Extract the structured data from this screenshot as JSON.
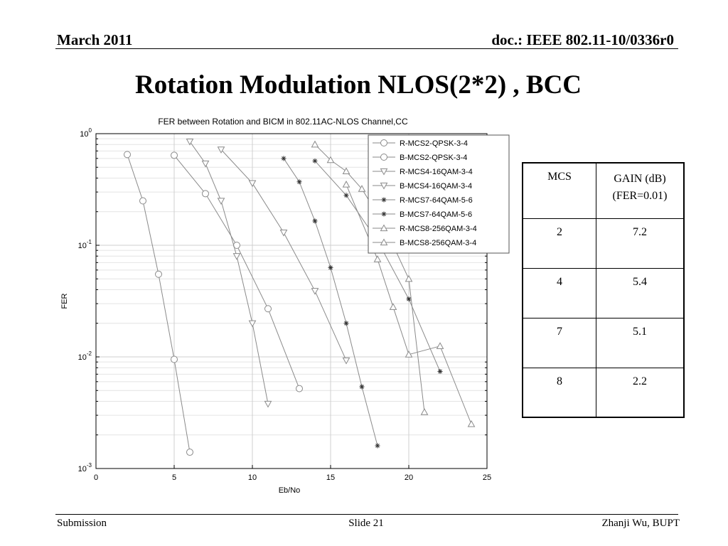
{
  "header": {
    "date": "March 2011",
    "doc": "doc.: IEEE 802.11-10/0336r0"
  },
  "slide_title": "Rotation Modulation NLOS(2*2) , BCC",
  "footer": {
    "left": "Submission",
    "center": "Slide 21",
    "right": "Zhanji Wu, BUPT"
  },
  "gain_table": {
    "headers": [
      "MCS",
      "GAIN (dB)",
      "(FER=0.01)"
    ],
    "rows": [
      {
        "mcs": "2",
        "gain": "7.2"
      },
      {
        "mcs": "4",
        "gain": "5.4"
      },
      {
        "mcs": "7",
        "gain": "5.1"
      },
      {
        "mcs": "8",
        "gain": "2.2"
      }
    ]
  },
  "chart_data": {
    "type": "line",
    "title": "FER between Rotation and BICM in 802.11AC-NLOS Channel,CC",
    "xlabel": "Eb/No",
    "ylabel": "FER",
    "xlim": [
      0,
      25
    ],
    "ylim": [
      0.001,
      1
    ],
    "y_scale": "log",
    "x_ticks": [
      0,
      5,
      10,
      15,
      20,
      25
    ],
    "y_ticks": [
      {
        "value": 1,
        "base": "10",
        "exp": "0"
      },
      {
        "value": 0.1,
        "base": "10",
        "exp": "-1"
      },
      {
        "value": 0.01,
        "base": "10",
        "exp": "-2"
      },
      {
        "value": 0.001,
        "base": "10",
        "exp": "-3"
      }
    ],
    "grid": true,
    "legend_position": "top-right",
    "series": [
      {
        "name": "R-MCS2-QPSK-3-4",
        "marker": "circle",
        "x": [
          2,
          3,
          4,
          5,
          6
        ],
        "y": [
          0.65,
          0.25,
          0.055,
          0.0095,
          0.0014
        ]
      },
      {
        "name": "B-MCS2-QPSK-3-4",
        "marker": "circle",
        "x": [
          5,
          7,
          9,
          11,
          13
        ],
        "y": [
          0.64,
          0.29,
          0.1,
          0.027,
          0.0052
        ]
      },
      {
        "name": "R-MCS4-16QAM-3-4",
        "marker": "triangle-down",
        "x": [
          6,
          7,
          8,
          9,
          10,
          11
        ],
        "y": [
          0.85,
          0.54,
          0.25,
          0.08,
          0.02,
          0.0038
        ]
      },
      {
        "name": "B-MCS4-16QAM-3-4",
        "marker": "triangle-down",
        "x": [
          8,
          10,
          12,
          14,
          16
        ],
        "y": [
          0.72,
          0.36,
          0.13,
          0.039,
          0.0093
        ]
      },
      {
        "name": "R-MCS7-64QAM-5-6",
        "marker": "star",
        "x": [
          12,
          13,
          14,
          15,
          16,
          17,
          18
        ],
        "y": [
          0.6,
          0.37,
          0.165,
          0.063,
          0.02,
          0.0054,
          0.0016
        ]
      },
      {
        "name": "B-MCS7-64QAM-5-6",
        "marker": "star",
        "x": [
          14,
          16,
          18,
          20,
          22
        ],
        "y": [
          0.57,
          0.28,
          0.11,
          0.033,
          0.0074
        ]
      },
      {
        "name": "R-MCS8-256QAM-3-4",
        "marker": "triangle-up",
        "x": [
          14,
          15,
          16,
          17,
          18,
          19,
          20,
          21
        ],
        "y": [
          0.8,
          0.58,
          0.46,
          0.32,
          0.19,
          0.1,
          0.05,
          0.0032
        ]
      },
      {
        "name": "B-MCS8-256QAM-3-4",
        "marker": "triangle-up",
        "x": [
          16,
          18,
          19,
          20,
          22,
          24
        ],
        "y": [
          0.35,
          0.075,
          0.028,
          0.0105,
          0.0125,
          0.0025
        ]
      }
    ]
  }
}
